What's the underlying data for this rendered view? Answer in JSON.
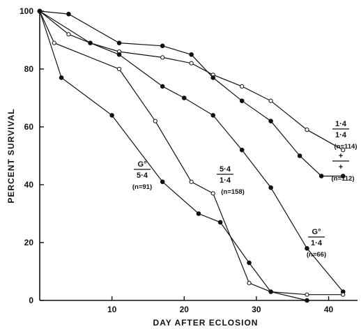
{
  "chart_data": {
    "type": "line",
    "title": "",
    "xlabel": "DAY AFTER ECLOSION",
    "ylabel": "PERCENT SURVIVAL",
    "xlim": [
      0,
      44
    ],
    "ylim": [
      0,
      100
    ],
    "xticks": [
      10,
      20,
      30,
      40
    ],
    "yticks": [
      0,
      20,
      40,
      60,
      80,
      100
    ],
    "grid": false,
    "legend": "none (inline labels)",
    "series": [
      {
        "key": "s1",
        "marker": "open",
        "label_num": "1·4",
        "label_den": "1·4",
        "label_n": "(n=114)",
        "x": [
          0,
          4,
          7,
          11,
          17,
          21,
          24,
          28,
          32,
          37,
          42
        ],
        "y": [
          100,
          92,
          89,
          86,
          84,
          82,
          78,
          74,
          69,
          59,
          52
        ]
      },
      {
        "key": "s2",
        "marker": "filled",
        "label_num": "+",
        "label_den": "+",
        "label_n": "(n=112)",
        "x": [
          0,
          7,
          11,
          17,
          20,
          24,
          28,
          32,
          37,
          42
        ],
        "y": [
          100,
          89,
          85,
          74,
          70,
          64,
          52,
          39,
          18,
          3
        ]
      },
      {
        "key": "s3",
        "marker": "filled",
        "label_num": "G°",
        "label_den": "1·4",
        "label_n": "(n=66)",
        "x": [
          0,
          4,
          11,
          17,
          21,
          24,
          28,
          32,
          36,
          39,
          42
        ],
        "y": [
          100,
          99,
          89,
          88,
          85,
          77,
          69,
          62,
          50,
          43,
          43
        ]
      },
      {
        "key": "s4",
        "marker": "open",
        "label_num": "5·4",
        "label_den": "1·4",
        "label_n": "(n=158)",
        "x": [
          0,
          2,
          11,
          16,
          21,
          24,
          29,
          32,
          37,
          42
        ],
        "y": [
          100,
          89,
          80,
          62,
          41,
          37,
          6,
          3,
          2,
          2
        ]
      },
      {
        "key": "s5",
        "marker": "filled",
        "label_num": "G°",
        "label_den": "5·4",
        "label_n": "(n=91)",
        "x": [
          0,
          3,
          10,
          17,
          22,
          25,
          29,
          32,
          37
        ],
        "y": [
          100,
          77,
          64,
          41,
          30,
          27,
          13,
          3,
          0
        ]
      }
    ]
  }
}
